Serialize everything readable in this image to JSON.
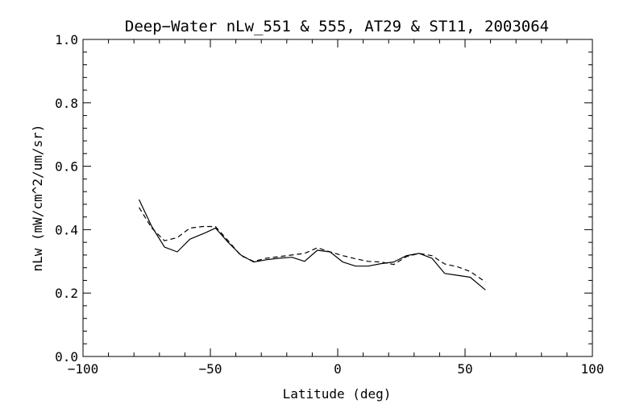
{
  "chart_data": {
    "type": "line",
    "title": "Deep−Water nLw_551 & 555, AT29 & ST11, 2003064",
    "xlabel": "Latitude (deg)",
    "ylabel": "nLw (mW/cm^2/um/sr)",
    "xlim": [
      -100,
      100
    ],
    "ylim": [
      0.0,
      1.0
    ],
    "x_ticks": [
      -100,
      -50,
      0,
      50,
      100
    ],
    "x_tick_labels": [
      "−100",
      "−50",
      "0",
      "50",
      "100"
    ],
    "y_ticks": [
      0.0,
      0.2,
      0.4,
      0.6,
      0.8,
      1.0
    ],
    "y_tick_labels": [
      "0.0",
      "0.2",
      "0.4",
      "0.6",
      "0.8",
      "1.0"
    ],
    "grid": false,
    "legend": "none",
    "series": [
      {
        "style": "solid",
        "color": "#000000",
        "x": [
          -78,
          -73,
          -68,
          -63,
          -58,
          -52,
          -48,
          -43,
          -38,
          -33,
          -28,
          -23,
          -18,
          -13,
          -8,
          -3,
          2,
          7,
          12,
          17,
          22,
          27,
          32,
          37,
          42,
          47,
          52,
          58
        ],
        "y": [
          0.495,
          0.41,
          0.345,
          0.33,
          0.37,
          0.39,
          0.405,
          0.36,
          0.32,
          0.298,
          0.305,
          0.31,
          0.313,
          0.3,
          0.335,
          0.33,
          0.298,
          0.285,
          0.285,
          0.293,
          0.298,
          0.318,
          0.325,
          0.31,
          0.262,
          0.256,
          0.25,
          0.21
        ]
      },
      {
        "style": "dashed",
        "color": "#000000",
        "x": [
          -78,
          -73,
          -68,
          -63,
          -58,
          -53,
          -48,
          -43,
          -38,
          -33,
          -28,
          -23,
          -18,
          -13,
          -8,
          -3,
          2,
          7,
          12,
          17,
          22,
          27,
          32,
          37,
          42,
          47,
          52,
          58
        ],
        "y": [
          0.47,
          0.405,
          0.365,
          0.375,
          0.405,
          0.41,
          0.41,
          0.365,
          0.318,
          0.3,
          0.31,
          0.315,
          0.32,
          0.325,
          0.343,
          0.33,
          0.318,
          0.308,
          0.3,
          0.298,
          0.29,
          0.315,
          0.325,
          0.318,
          0.292,
          0.283,
          0.268,
          0.235
        ]
      }
    ]
  }
}
